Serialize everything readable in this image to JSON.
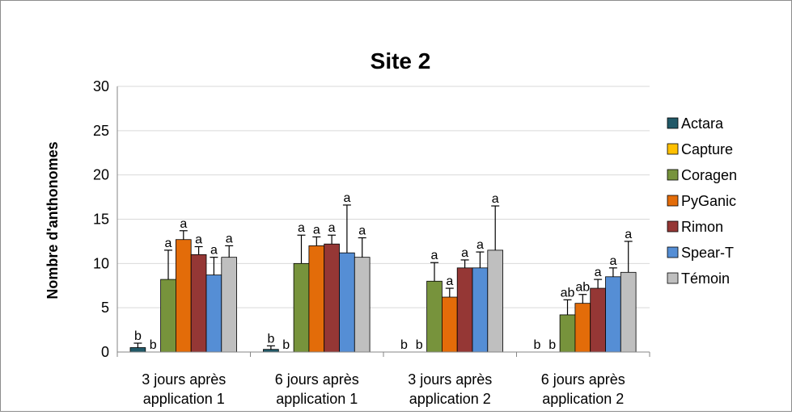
{
  "chart_data": {
    "type": "bar",
    "title": "Site 2",
    "ylabel": "Nombre d'anthonomes",
    "xlabel": "",
    "ylim": [
      0,
      30
    ],
    "yticks": [
      0,
      5,
      10,
      15,
      20,
      25,
      30
    ],
    "grid": true,
    "legend_position": "right",
    "categories": [
      [
        "3 jours après",
        "application 1"
      ],
      [
        "6 jours après",
        "application 1"
      ],
      [
        "3 jours après",
        "application 2"
      ],
      [
        "6 jours après",
        "application 2"
      ]
    ],
    "series": [
      {
        "name": "Actara",
        "color": "#215968",
        "values": [
          0.5,
          0.3,
          0,
          0
        ],
        "errors": [
          0.5,
          0.4,
          0,
          0
        ],
        "letters": [
          "b",
          "b",
          "b",
          "b"
        ]
      },
      {
        "name": "Capture",
        "color": "#FFC000",
        "values": [
          0,
          0,
          0,
          0
        ],
        "errors": [
          0,
          0,
          0,
          0
        ],
        "letters": [
          "b",
          "b",
          "b",
          "b"
        ]
      },
      {
        "name": "Coragen",
        "color": "#77933C",
        "values": [
          8.2,
          10,
          8,
          4.2
        ],
        "errors": [
          3.3,
          3.2,
          2.1,
          1.7
        ],
        "letters": [
          "a",
          "a",
          "a",
          "ab"
        ]
      },
      {
        "name": "PyGanic",
        "color": "#E36C09",
        "values": [
          12.7,
          12,
          6.2,
          5.5
        ],
        "errors": [
          1.0,
          1.0,
          1.0,
          1.0
        ],
        "letters": [
          "a",
          "a",
          "a",
          "ab"
        ]
      },
      {
        "name": "Rimon",
        "color": "#953735",
        "values": [
          11,
          12.2,
          9.5,
          7.2
        ],
        "errors": [
          0.9,
          1.0,
          0.9,
          1.0
        ],
        "letters": [
          "a",
          "a",
          "a",
          "a"
        ]
      },
      {
        "name": "Spear-T",
        "color": "#558ED5",
        "values": [
          8.7,
          11.2,
          9.5,
          8.5
        ],
        "errors": [
          2.0,
          5.4,
          1.8,
          1.0
        ],
        "letters": [
          "a",
          "a",
          "a",
          "a"
        ]
      },
      {
        "name": "Témoin",
        "color": "#BFBFBF",
        "values": [
          10.7,
          10.7,
          11.5,
          9
        ],
        "errors": [
          1.3,
          2.2,
          5.0,
          3.5
        ],
        "letters": [
          "a",
          "a",
          "a",
          "a"
        ]
      }
    ]
  }
}
